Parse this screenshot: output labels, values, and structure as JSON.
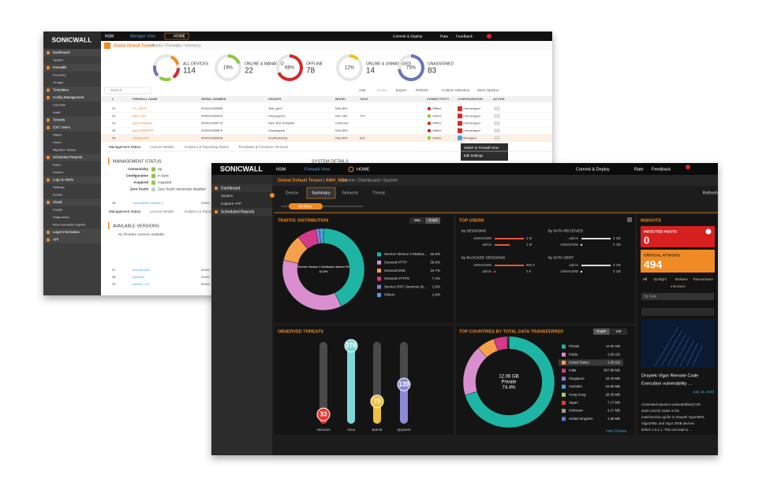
{
  "back": {
    "brand": "SONICWALL",
    "nav": [
      "NSM",
      "Manager View",
      "HOME"
    ],
    "actions": [
      "Commit & Deploy",
      "Rate",
      "Feedback"
    ],
    "tenant": "Global Default Tenant",
    "path": "/ Home / Firewalls / Inventory",
    "sidebar": [
      {
        "title": "Dashboard",
        "items": [
          "System"
        ]
      },
      {
        "title": "Firewalls",
        "items": [
          "Inventory",
          "Groups"
        ]
      },
      {
        "title": "Templates",
        "items": []
      },
      {
        "title": "Config Management",
        "items": [
          "Commits",
          "Audit"
        ]
      },
      {
        "title": "Tenants",
        "items": []
      },
      {
        "title": "CSC Users",
        "items": [
          "Status",
          "Users",
          "Migration Status"
        ]
      },
      {
        "title": "Scheduled Reports",
        "items": [
          "Rules",
          "Archive"
        ]
      },
      {
        "title": "Logs & Alerts",
        "items": [
          "Settings",
          "Events"
        ]
      },
      {
        "title": "Cloud",
        "items": [
          "Cluster",
          "Diagnostics",
          "Flow Forwarder Agents"
        ]
      },
      {
        "title": "Legal Information",
        "items": []
      },
      {
        "title": "API",
        "items": []
      }
    ],
    "summary": [
      {
        "label": "ALL DEVICES",
        "count": 114
      },
      {
        "label": "ONLINE & MANAGED",
        "percent": 19,
        "percent_label": "19%",
        "count": 22,
        "color": "#8dc63f"
      },
      {
        "label": "OFFLINE",
        "percent": 68,
        "percent_label": "68%",
        "count": 78,
        "color": "#d62828"
      },
      {
        "label": "ONLINE & UNMANAGED",
        "percent": 12,
        "percent_label": "12%",
        "count": 14,
        "color": "#f0c419"
      },
      {
        "label": "UNASSIGNED",
        "percent": 73,
        "percent_label": "73%",
        "count": 83,
        "color": "#6b74b8"
      }
    ],
    "search": "Search...",
    "toolbar": [
      "Add",
      "Delete",
      "Export",
      "Refresh",
      "Column Selection",
      "More Options"
    ],
    "table": {
      "columns": [
        "#",
        "FIREWALL NAME",
        "SERIAL NUMBER",
        "GROUPS",
        "MODEL",
        "TAGS",
        "CONNECTIVITY",
        "CONFIGURATION",
        "ACTION"
      ],
      "rows": [
        [
          "31",
          "CY_DEV7",
          "0040103409BE",
          "Test_geo7",
          "NSa 800",
          null,
          "Offline",
          "Unmanaged"
        ],
        [
          "32",
          "spot_1w7",
          "0040103403FA",
          "Unassigned",
          "NSv 200",
          "T27",
          "Online",
          "Unmanaged"
        ],
        [
          "33",
          "spot Template",
          "004010340F7D",
          "New Test Template",
          "Unknown",
          null,
          "Offline",
          "Unmanaged"
        ],
        [
          "34",
          "spot DSWRFR",
          "0040103998F8",
          "Unassigned",
          "NSa 800",
          null,
          "Offline",
          "Unmanaged"
        ],
        [
          "35",
          "Sonicw-test",
          "0040103809D6",
          "newRadioGrp",
          "NSa 800",
          "test",
          "Online",
          "Managed"
        ]
      ],
      "rows_lower": [
        [
          "36",
          "rocket@ldm-firewall-1",
          "00401"
        ],
        [
          "37",
          "test-fld-build",
          "00401"
        ],
        [
          "38",
          "fyluhk0V",
          "00401"
        ],
        [
          "39",
          "warden_nm",
          "00401"
        ]
      ]
    },
    "context_menu": [
      "Switch to Firewall View",
      "Edit Settings"
    ],
    "detail_tabs": [
      "Management Status",
      "License Details",
      "Analytics & Reporting Status",
      "Templates & Firmware Versions"
    ],
    "mgmt_title": "MANAGEMENT STATUS",
    "mgmt": [
      [
        "Connectivity",
        "Up"
      ],
      [
        "Configuration",
        "In Sync"
      ],
      [
        "Acquired",
        "Acquired"
      ],
      [
        "Zero Touch",
        "Zero Touch connection disabled"
      ]
    ],
    "system_details": "SYSTEM DETAILS",
    "versions_title": "AVAILABLE VERSIONS",
    "versions_empty": "No firmware versions available"
  },
  "front": {
    "brand": "SONICWALL",
    "nav": [
      "NSM",
      "Firewall View",
      "HOME"
    ],
    "actions": [
      "Commit & Deploy",
      "Rate",
      "Feedback",
      "Refresh"
    ],
    "tenant": "Global Default Tenant | AMH_NSA",
    "path": "/ Home / Dashboard / System",
    "sidebar": [
      {
        "title": "Dashboard",
        "items": [
          "System",
          "Capture ATP"
        ]
      },
      {
        "title": "Scheduled Reports",
        "items": []
      }
    ],
    "tabs": [
      "Device",
      "Summary",
      "Network",
      "Threat"
    ],
    "slider": "60 Mins",
    "traffic": {
      "title": "TRAFFIC DISTRIBUTION",
      "toggles": [
        "Max",
        "Graph"
      ],
      "center_name": "Service Version 2 Multicast Listener Re",
      "center_value": "42.6%",
      "names": [
        "Service Version 2 Multica...",
        "General HTTP",
        "General DNS",
        "General HTTPS",
        "Service RPC Services (&...",
        "Others"
      ],
      "values": [
        42.6,
        35.6,
        10.7,
        7.4,
        1.5,
        1.6
      ],
      "value_labels": [
        "42.6%",
        "35.6%",
        "10.7%",
        "7.4%",
        "1.5%",
        "1.6%"
      ],
      "colors": [
        "#1fb5a5",
        "#d98fcf",
        "#f5a04a",
        "#d63a8a",
        "#8a7fd0",
        "#4aa0e0"
      ]
    },
    "top_users": {
      "title": "TOP USERS",
      "groups": [
        {
          "title": "by SESSIONS",
          "users": [
            "UNKNOWN",
            "admin"
          ],
          "values": [
            2000000,
            1000000
          ],
          "value_labels": [
            "2 M",
            "1 M"
          ],
          "color": "#e8553a"
        },
        {
          "title": "by DATA RECEIVED",
          "users": [
            "admin",
            "UNKNOWN"
          ],
          "values": [
            2,
            0
          ],
          "value_labels": [
            "2 GB",
            "0 GB"
          ],
          "color": "#dddddd"
        },
        {
          "title": "by BLOCKED SESSIONS",
          "users": [
            "UNKNOWN",
            "admin"
          ],
          "values": [
            960000,
            0
          ],
          "value_labels": [
            "960 K",
            "0 K"
          ],
          "color": "#e8553a"
        },
        {
          "title": "by DATA SENT",
          "users": [
            "admin",
            "UNKNOWN"
          ],
          "values": [
            3,
            0
          ],
          "value_labels": [
            "3 GB",
            "0 GB"
          ],
          "color": "#dddddd"
        }
      ]
    },
    "threats": {
      "title": "OBSERVED THREATS",
      "categories": [
        "Intrusion",
        "Virus",
        "Botnet",
        "Spyware"
      ],
      "values": [
        33,
        276,
        79,
        139
      ],
      "colors": [
        "#e63b2e",
        "#7fd6d6",
        "#f0c040",
        "#8a8ad8"
      ],
      "ylim": [
        0,
        290
      ]
    },
    "countries": {
      "title": "TOP COUNTRIES BY TOTAL DATA TRANSFERRED",
      "toggles": [
        "Graph",
        "List"
      ],
      "center": [
        "12.06 GB",
        "Private",
        "74.4%"
      ],
      "names": [
        "Private",
        "Public",
        "United States",
        "India",
        "Singapore",
        "Australia",
        "Hong Kong",
        "Japan",
        "Unknown",
        "United Kingdom"
      ],
      "values": [
        12.06,
        3.08,
        1.08,
        0.80788,
        0.03433,
        0.03485,
        0.02835,
        0.00717,
        0.00317,
        0.00135
      ],
      "value_labels": [
        "12.06 GB",
        "3.08 GB",
        "1.08 GB",
        "807.88 MB",
        "34.33 MB",
        "34.85 MB",
        "28.35 MB",
        "7.17 MB",
        "3.17 MB",
        "1.35 MB"
      ],
      "colors": [
        "#1fb5a5",
        "#d98fcf",
        "#f5a04a",
        "#d63a8a",
        "#8a7fd0",
        "#4aa0e0",
        "#9ed36a",
        "#e03c3c",
        "#9a9a9a",
        "#5a7fd0"
      ],
      "link": "View Details..."
    },
    "insights": {
      "title": "INSIGHTS",
      "infected_label": "INFECTED HOSTS",
      "infected": 0,
      "critical_label": "CRITICAL ATTACKS",
      "critical": 494,
      "filters": [
        "All",
        "Spotlight",
        "Malware",
        "Ransomware",
        "Intrusions"
      ],
      "sort": "By Date",
      "news_title": [
        "Draytek Vigor Remote Code",
        "Execution vulnerability ..."
      ],
      "news_date": "July 23, 2020",
      "news_body": [
        "Command-injection vulnerabilities(CVE-",
        "2020-14472) exists in the",
        "mainfunction.cgi file in Draytek Vigor3900,",
        "Vigor2960, and Vigor 300B devices",
        "before 1.5.1.1. This can lead to ..."
      ]
    }
  }
}
